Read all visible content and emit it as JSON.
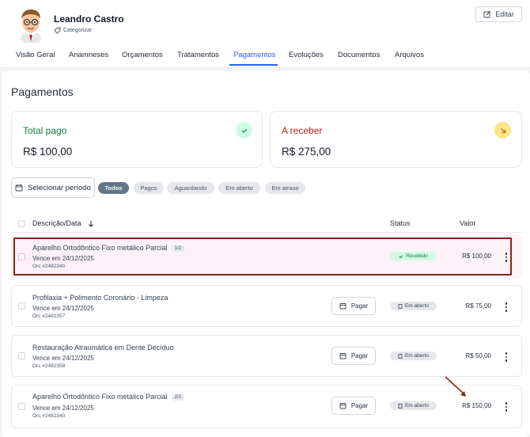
{
  "header": {
    "user_name": "Leandro Castro",
    "category_label": "Categorizar",
    "edit_label": "Editar"
  },
  "tabs": [
    {
      "label": "Visão Geral"
    },
    {
      "label": "Anamneses"
    },
    {
      "label": "Orçamentos"
    },
    {
      "label": "Tratamentos"
    },
    {
      "label": "Pagamentos"
    },
    {
      "label": "Evoluções"
    },
    {
      "label": "Documentos"
    },
    {
      "label": "Arquivos"
    }
  ],
  "active_tab": "Pagamentos",
  "page_title": "Pagamentos",
  "summary": {
    "paid_label": "Total pago",
    "paid_value": "R$ 100,00",
    "receivable_label": "A receber",
    "receivable_value": "R$ 275,00"
  },
  "filters": {
    "period_label": "Selecionar período",
    "chips": [
      "Todos",
      "Pagos",
      "Aguardando",
      "Em aberto",
      "Em atraso"
    ],
    "active_chip": "Todos"
  },
  "table": {
    "col_desc": "Descrição/Data",
    "col_status": "Status",
    "col_value": "Valor",
    "rows": [
      {
        "desc": "Aparelho Ortodôntico Fixo metálico Parcial",
        "fraction": "1/2",
        "due": "Vence em 24/12/2025",
        "orc": "Orc #2482340",
        "status": "Recebido",
        "value": "R$ 100,00",
        "pay_label": ""
      },
      {
        "desc": "Profilaxia + Polimento Coronário - Limpeza",
        "fraction": "",
        "due": "Vence em 24/12/2025",
        "orc": "Orc #2482357",
        "status": "Em aberto",
        "value": "R$ 75,00",
        "pay_label": "Pagar"
      },
      {
        "desc": "Restauração Atraumática em Dente Decíduo",
        "fraction": "",
        "due": "Vence em 24/12/2025",
        "orc": "Orc #2482358",
        "status": "Em aberto",
        "value": "R$ 50,00",
        "pay_label": "Pagar"
      },
      {
        "desc": "Aparelho Ortodôntico Fixo metálico Parcial",
        "fraction": "2/2",
        "due": "Vence em 24/12/2025",
        "orc": "Orc #2482340",
        "status": "Em aberto",
        "value": "R$ 150,00",
        "pay_label": "Pagar"
      }
    ]
  },
  "colors": {
    "accent": "#2563eb",
    "paid": "#15803d",
    "receivable": "#b91c1c",
    "highlight": "#7f2a1a"
  }
}
